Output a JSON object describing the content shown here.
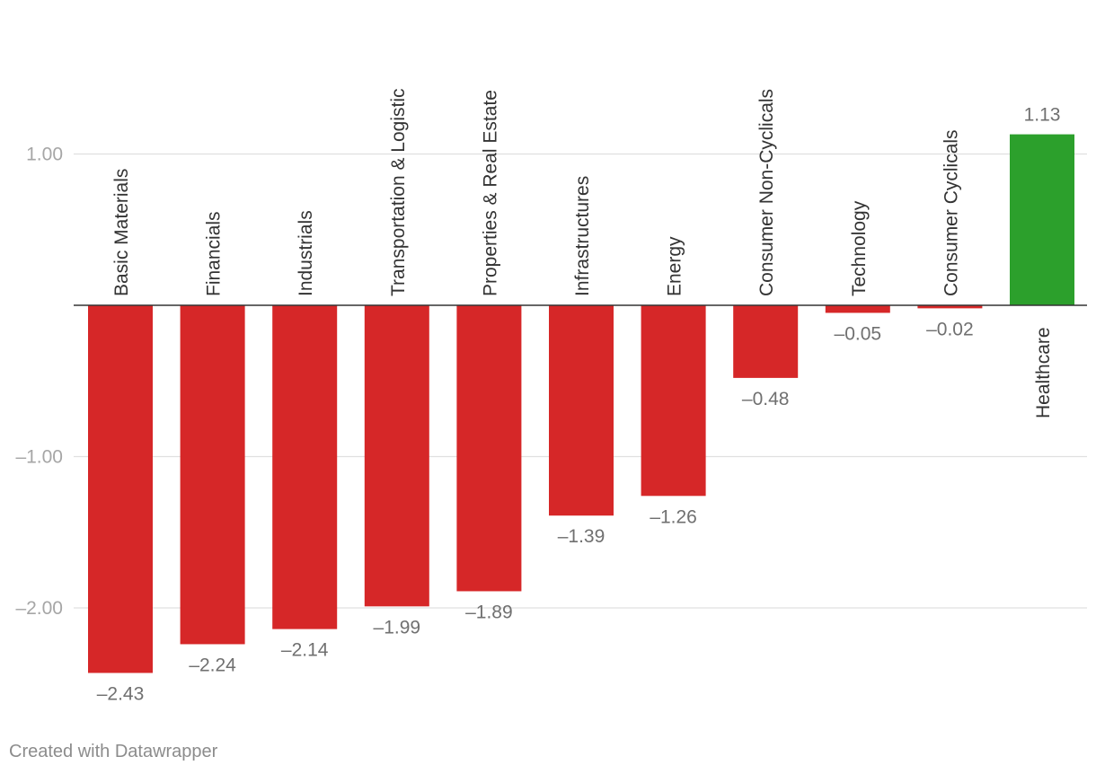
{
  "chart_data": {
    "type": "bar",
    "categories": [
      "Basic Materials",
      "Financials",
      "Industrials",
      "Transportation & Logistic",
      "Properties & Real Estate",
      "Infrastructures",
      "Energy",
      "Consumer Non-Cyclicals",
      "Technology",
      "Consumer Cyclicals",
      "Healthcare"
    ],
    "values": [
      -2.43,
      -2.24,
      -2.14,
      -1.99,
      -1.89,
      -1.39,
      -1.26,
      -0.48,
      -0.05,
      -0.02,
      1.13
    ],
    "value_labels": [
      "–2.43",
      "–2.24",
      "–2.14",
      "–1.99",
      "–1.89",
      "–1.39",
      "–1.26",
      "–0.48",
      "–0.05",
      "–0.02",
      "1.13"
    ],
    "y_ticks": [
      1,
      -1,
      -2
    ],
    "y_tick_labels": [
      "1.00",
      "–1.00",
      "–2.00"
    ],
    "ylim": [
      -2.43,
      1.13
    ],
    "colors": {
      "positive": "#2ca02c",
      "negative": "#d62728"
    },
    "title": "",
    "xlabel": "",
    "ylabel": "",
    "grid": true,
    "legend": "none"
  },
  "footer": {
    "credit": "Created with Datawrapper"
  }
}
